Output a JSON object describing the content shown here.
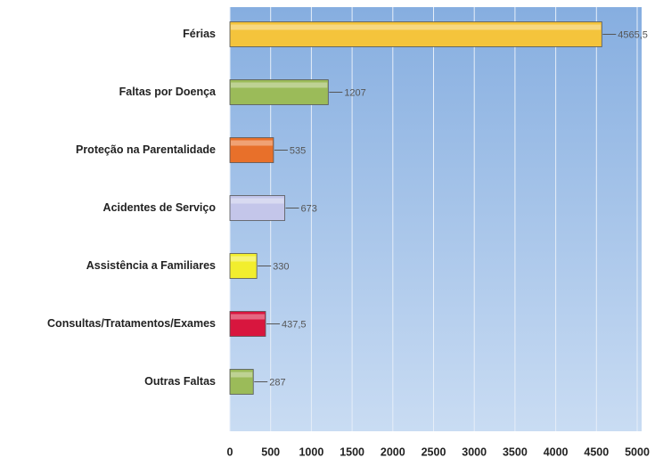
{
  "chart_data": {
    "type": "bar",
    "orientation": "horizontal",
    "categories": [
      "Férias",
      "Faltas por Doença",
      "Proteção na Parentalidade",
      "Acidentes de Serviço",
      "Assistência a Familiares",
      "Consultas/Tratamentos/Exames",
      "Outras Faltas"
    ],
    "values": [
      4565.5,
      1207,
      535,
      673,
      330,
      437.5,
      287
    ],
    "value_labels": [
      "4565,5",
      "1207",
      "535",
      "673",
      "330",
      "437,5",
      "287"
    ],
    "colors": [
      "#f4c43c",
      "#9bbb59",
      "#e8702a",
      "#c4c6ea",
      "#f2ee2e",
      "#d8163e",
      "#9bbb59"
    ],
    "xlim": [
      0,
      5000
    ],
    "xticks": [
      0,
      500,
      1000,
      1500,
      2000,
      2500,
      3000,
      3500,
      4000,
      4500,
      5000
    ],
    "grid": true
  }
}
